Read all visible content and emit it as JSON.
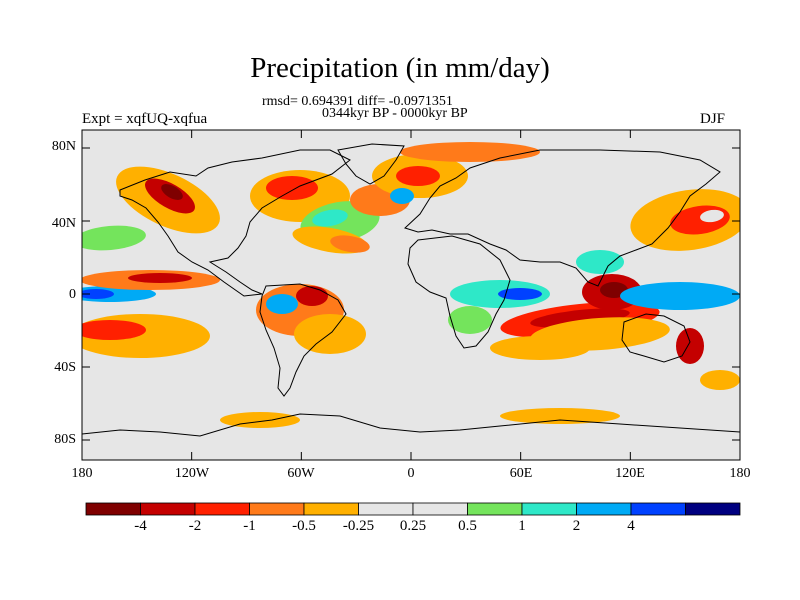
{
  "title": "Precipitation (in mm/day)",
  "stats_line": "rmsd= 0.694391 diff= -0.0971351",
  "period_line": "0344kyr BP - 0000kyr BP",
  "experiment_label": "Expt = xqfUQ-xqfua",
  "season_label": "DJF",
  "y_axis_labels": [
    "80N",
    "40N",
    "0",
    "40S",
    "80S"
  ],
  "x_axis_labels": [
    "180",
    "120W",
    "60W",
    "0",
    "60E",
    "120E",
    "180"
  ],
  "colorbar": {
    "colors": [
      "#7f0000",
      "#c40000",
      "#ff2000",
      "#ff7a1a",
      "#ffb000",
      "#e6e6e6",
      "#e6e6e6",
      "#74e45c",
      "#2ee8c8",
      "#00aaf5",
      "#0041ff",
      "#000080"
    ],
    "labels": [
      "-4",
      "-2",
      "-1",
      "-0.5",
      "-0.25",
      "0.25",
      "0.5",
      "1",
      "2",
      "4"
    ]
  },
  "map_colors": {
    "background": "#e6e6e6",
    "dark_red": "#7f0000",
    "red": "#c40000",
    "red_orange": "#ff2000",
    "orange": "#ff7a1a",
    "yellow_orange": "#ffb000",
    "green": "#74e45c",
    "cyan": "#2ee8c8",
    "light_blue": "#00aaf5",
    "blue": "#0041ff",
    "navy": "#000080"
  }
}
